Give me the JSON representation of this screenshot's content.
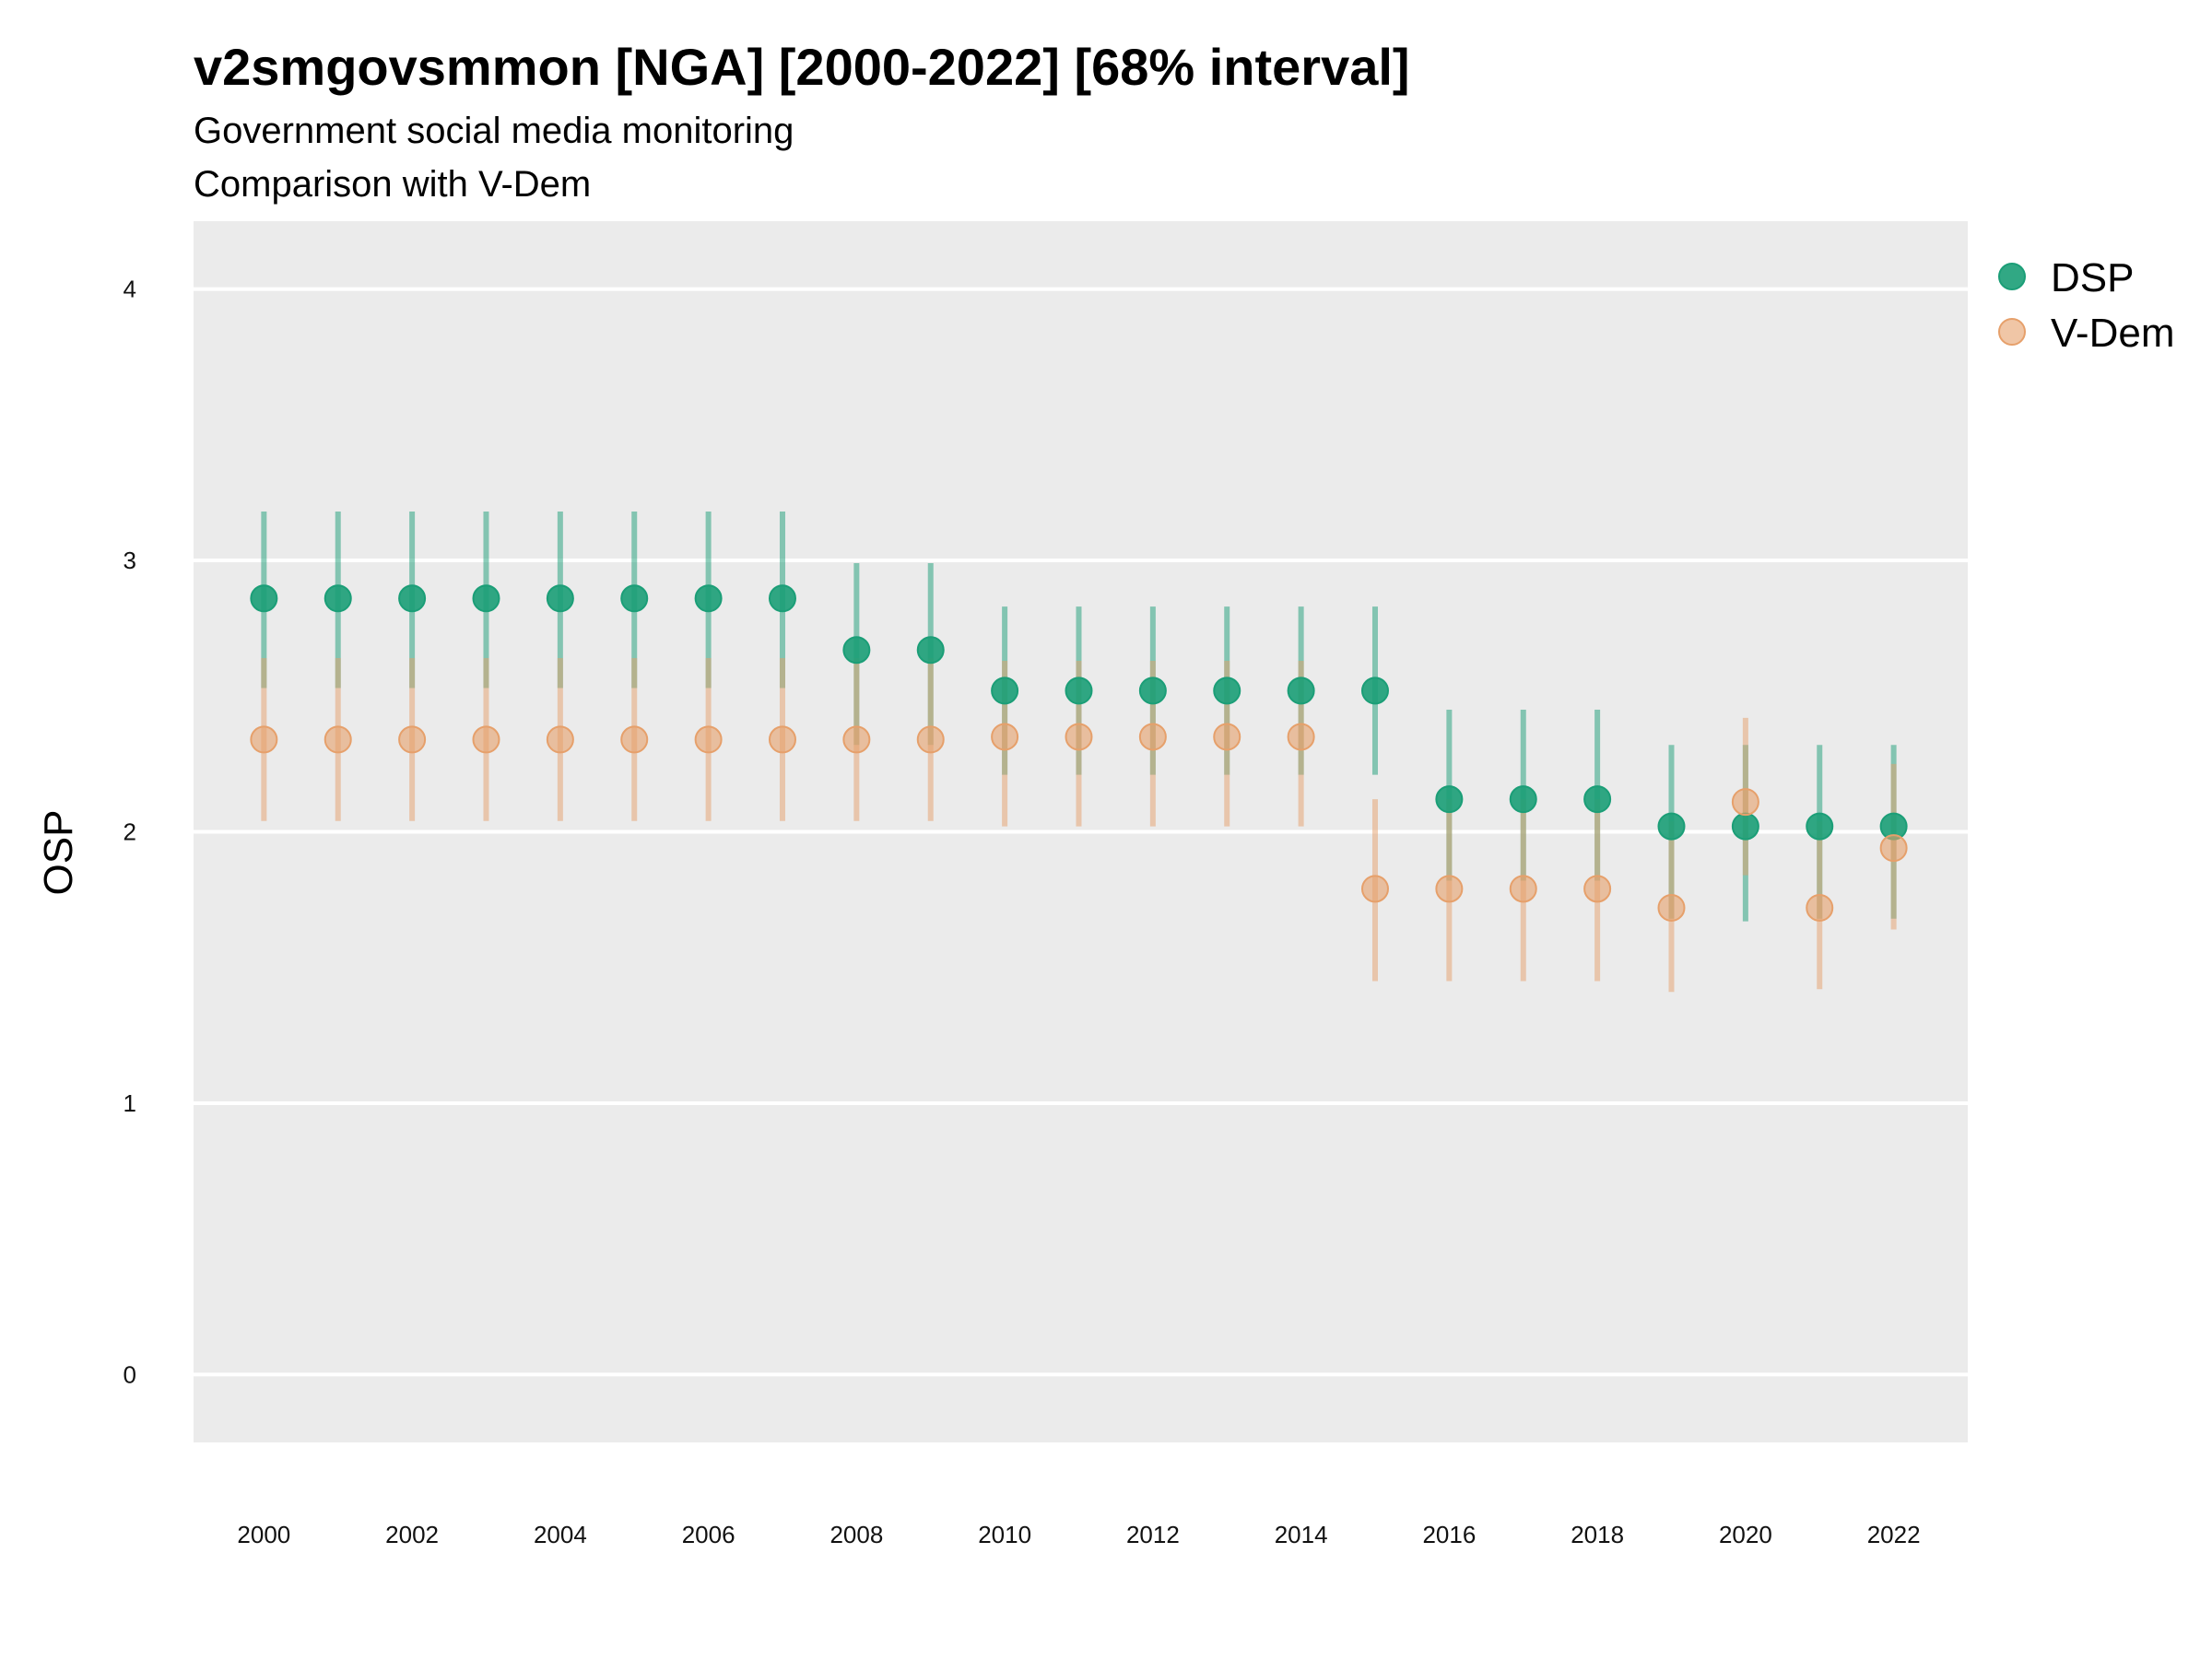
{
  "chart_data": {
    "type": "scatter",
    "title": "v2smgovsmmon [NGA] [2000-2022] [68% interval]",
    "subtitle": "Government social media monitoring",
    "caption_line": "Comparison with V-Dem",
    "xlabel": "",
    "ylabel": "OSP",
    "xlim": [
      1999.05,
      2023.0
    ],
    "ylim": [
      -0.25,
      4.25
    ],
    "x_ticks": [
      2000,
      2002,
      2004,
      2006,
      2008,
      2010,
      2012,
      2014,
      2016,
      2018,
      2020,
      2022
    ],
    "y_ticks": [
      0,
      1,
      2,
      3,
      4
    ],
    "grid": true,
    "legend_position": "right",
    "series": [
      {
        "name": "DSP",
        "color": "#1b9e77",
        "x": [
          2000,
          2001,
          2002,
          2003,
          2004,
          2005,
          2006,
          2007,
          2008,
          2009,
          2010,
          2011,
          2012,
          2013,
          2014,
          2015,
          2016,
          2017,
          2018,
          2019,
          2020,
          2021,
          2022
        ],
        "y": [
          2.86,
          2.86,
          2.86,
          2.86,
          2.86,
          2.86,
          2.86,
          2.86,
          2.67,
          2.67,
          2.52,
          2.52,
          2.52,
          2.52,
          2.52,
          2.52,
          2.12,
          2.12,
          2.12,
          2.02,
          2.02,
          2.02,
          2.02
        ],
        "lower": [
          2.53,
          2.53,
          2.53,
          2.53,
          2.53,
          2.53,
          2.53,
          2.53,
          2.32,
          2.32,
          2.21,
          2.21,
          2.21,
          2.21,
          2.21,
          2.21,
          1.82,
          1.82,
          1.82,
          1.68,
          1.67,
          1.68,
          1.68
        ],
        "upper": [
          3.18,
          3.18,
          3.18,
          3.18,
          3.18,
          3.18,
          3.18,
          3.18,
          2.99,
          2.99,
          2.83,
          2.83,
          2.83,
          2.83,
          2.83,
          2.83,
          2.45,
          2.45,
          2.45,
          2.32,
          2.32,
          2.32,
          2.32
        ]
      },
      {
        "name": "V-Dem",
        "color": "#e6a06b",
        "x": [
          2000,
          2001,
          2002,
          2003,
          2004,
          2005,
          2006,
          2007,
          2008,
          2009,
          2010,
          2011,
          2012,
          2013,
          2014,
          2015,
          2016,
          2017,
          2018,
          2019,
          2020,
          2021,
          2022
        ],
        "y": [
          2.34,
          2.34,
          2.34,
          2.34,
          2.34,
          2.34,
          2.34,
          2.34,
          2.34,
          2.34,
          2.35,
          2.35,
          2.35,
          2.35,
          2.35,
          1.79,
          1.79,
          1.79,
          1.79,
          1.72,
          2.11,
          1.72,
          1.94
        ],
        "lower": [
          2.04,
          2.04,
          2.04,
          2.04,
          2.04,
          2.04,
          2.04,
          2.04,
          2.04,
          2.04,
          2.02,
          2.02,
          2.02,
          2.02,
          2.02,
          1.45,
          1.45,
          1.45,
          1.45,
          1.41,
          1.84,
          1.42,
          1.64
        ],
        "upper": [
          2.64,
          2.64,
          2.64,
          2.64,
          2.64,
          2.64,
          2.64,
          2.64,
          2.64,
          2.64,
          2.63,
          2.63,
          2.63,
          2.63,
          2.63,
          2.12,
          2.12,
          2.12,
          2.12,
          2.04,
          2.42,
          2.04,
          2.25
        ]
      }
    ]
  }
}
